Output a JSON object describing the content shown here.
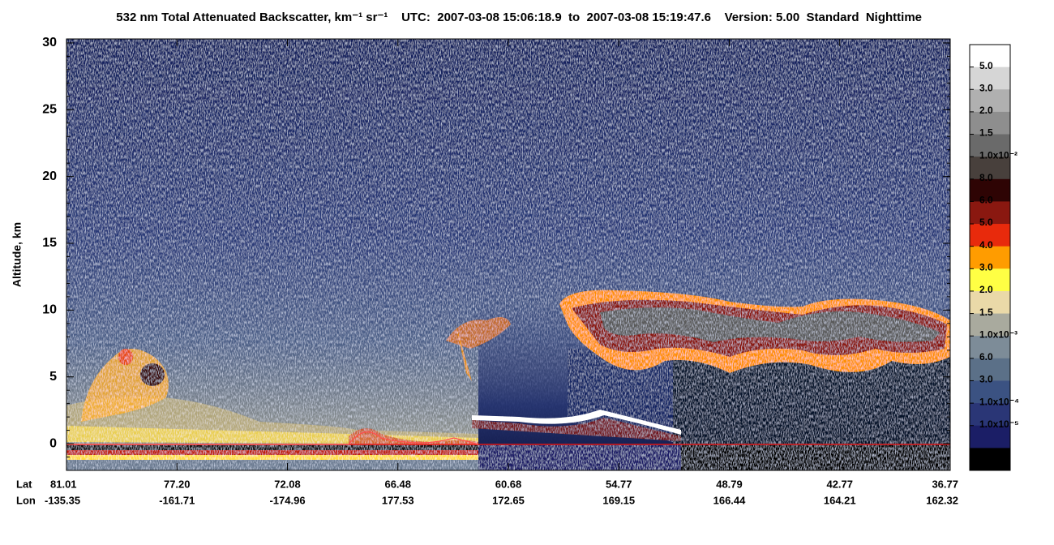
{
  "chart_data": {
    "type": "curtain",
    "title": "532 nm Total Attenuated Backscatter, km⁻¹ sr⁻¹",
    "time_range": "UTC:  2007-03-08 15:06:18.9  to  2007-03-08 15:19:47.6",
    "version": "Version: 5.00  Standard  Nighttime",
    "y_label": "Altitude, km",
    "ylim": [
      -2,
      30.3
    ],
    "yticks": [
      0,
      5,
      10,
      15,
      20,
      25,
      30
    ],
    "x_row_labels": [
      "Lat",
      "Lon"
    ],
    "lat": [
      "81.01",
      "77.20",
      "72.08",
      "66.48",
      "60.68",
      "54.77",
      "48.79",
      "42.77",
      "36.77"
    ],
    "lon": [
      "-135.35",
      "-161.71",
      "-174.96",
      "177.53",
      "172.65",
      "169.15",
      "166.44",
      "164.21",
      "162.32"
    ],
    "colorbar": {
      "colors": [
        "#ffffff",
        "#d6d6d6",
        "#b0b0b0",
        "#8e8e8e",
        "#6a6a6a",
        "#48403c",
        "#2e0404",
        "#8a1810",
        "#e82a0c",
        "#ff9c00",
        "#ffff44",
        "#ead9a8",
        "#a9aa9e",
        "#7d8c98",
        "#5b7088",
        "#3b5282",
        "#2a3676",
        "#1b1e66",
        "#000000"
      ],
      "labels": [
        "5.0",
        "3.0",
        "2.0",
        "1.5",
        "1.0x10⁻²",
        "8.0",
        "6.0",
        "5.0",
        "4.0",
        "3.0",
        "2.0",
        "1.5",
        "1.0x10⁻³",
        "6.0",
        "3.0",
        "1.0x10⁻⁴",
        "1.0x10⁻⁵"
      ]
    }
  }
}
